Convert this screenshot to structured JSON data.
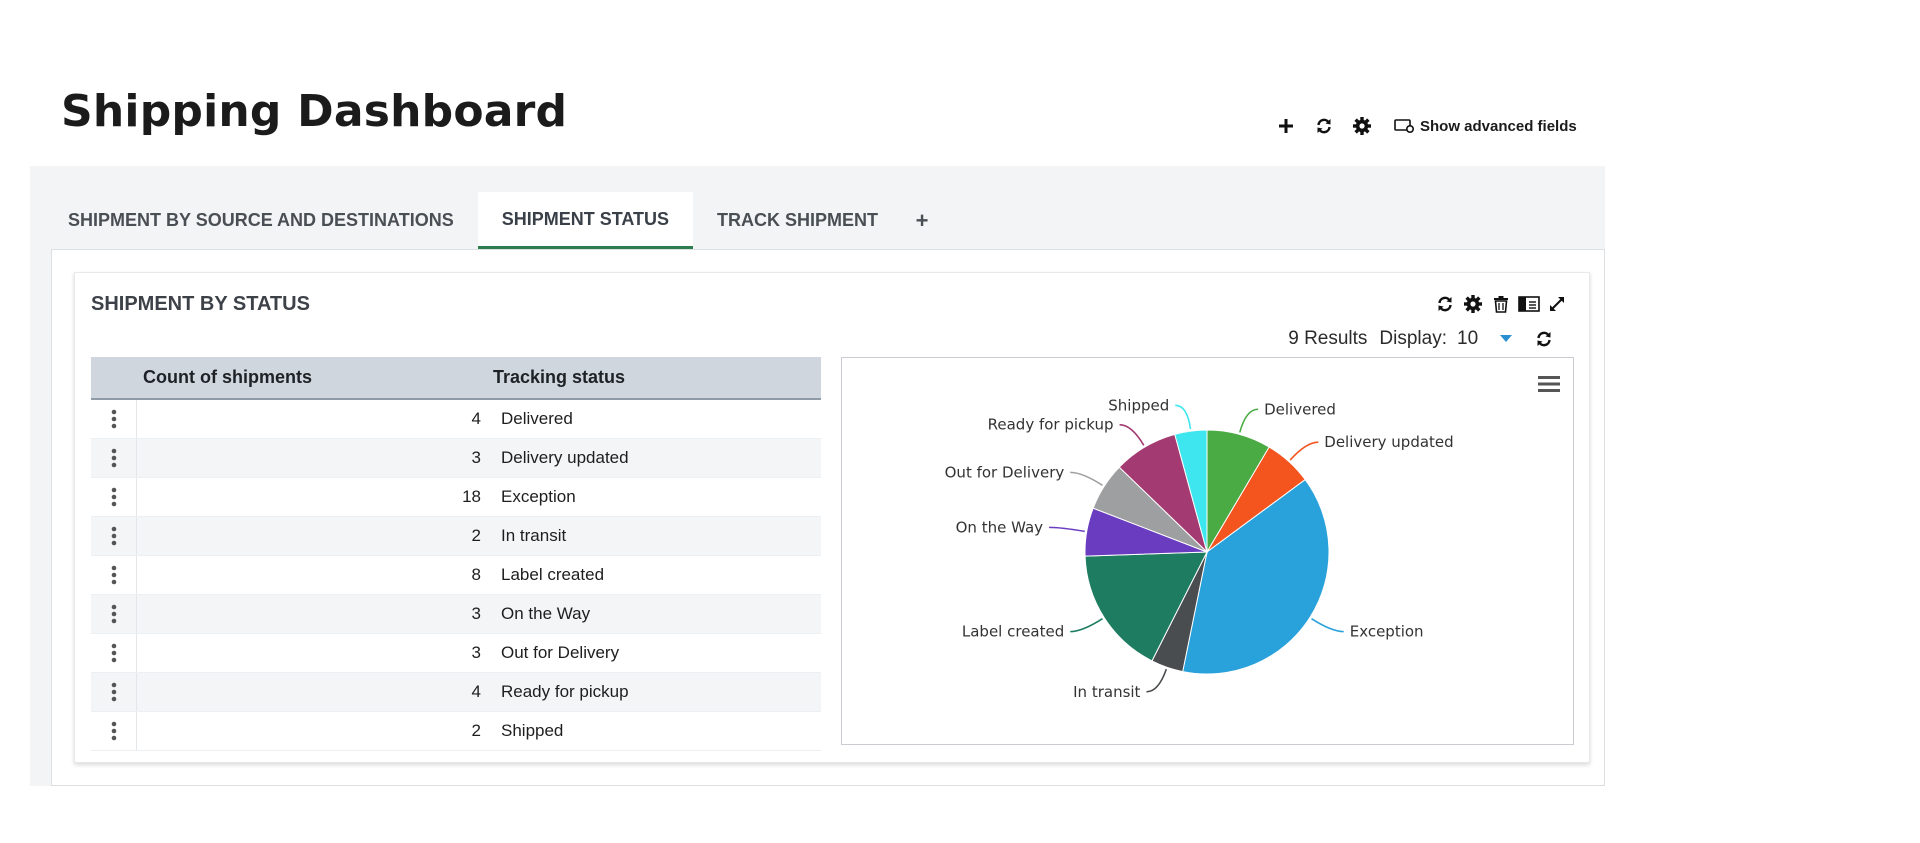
{
  "page": {
    "title": "Shipping Dashboard"
  },
  "toolbar": {
    "add_icon": "plus-icon",
    "refresh_icon": "refresh-icon",
    "settings_icon": "gear-icon",
    "advanced_label": "Show advanced fields"
  },
  "tabs": [
    {
      "label": "SHIPMENT BY SOURCE AND DESTINATIONS",
      "active": false
    },
    {
      "label": "SHIPMENT STATUS",
      "active": true
    },
    {
      "label": "TRACK SHIPMENT",
      "active": false
    },
    {
      "label": "+",
      "active": false
    }
  ],
  "widget": {
    "title": "SHIPMENT BY STATUS",
    "results_label": "9 Results",
    "display_label": "Display:",
    "display_value": "10"
  },
  "table": {
    "columns": [
      "Count of shipments",
      "Tracking status"
    ],
    "rows": [
      {
        "count": "4",
        "status": "Delivered"
      },
      {
        "count": "3",
        "status": "Delivery updated"
      },
      {
        "count": "18",
        "status": "Exception"
      },
      {
        "count": "2",
        "status": "In transit"
      },
      {
        "count": "8",
        "status": "Label created"
      },
      {
        "count": "3",
        "status": "On the Way"
      },
      {
        "count": "3",
        "status": "Out for Delivery"
      },
      {
        "count": "4",
        "status": "Ready for pickup"
      },
      {
        "count": "2",
        "status": "Shipped"
      }
    ]
  },
  "chart_data": {
    "type": "pie",
    "title": "",
    "categories": [
      "Delivered",
      "Delivery updated",
      "Exception",
      "In transit",
      "Label created",
      "On the Way",
      "Out for Delivery",
      "Ready for pickup",
      "Shipped"
    ],
    "values": [
      4,
      3,
      18,
      2,
      8,
      3,
      3,
      4,
      2
    ],
    "colors": [
      "#4aab44",
      "#f4541e",
      "#29a1db",
      "#4a4d50",
      "#1e7d61",
      "#6a3cc0",
      "#9e9fa1",
      "#a33a72",
      "#3ee6ef"
    ],
    "legend": "none",
    "labels": "outside-with-connectors"
  }
}
